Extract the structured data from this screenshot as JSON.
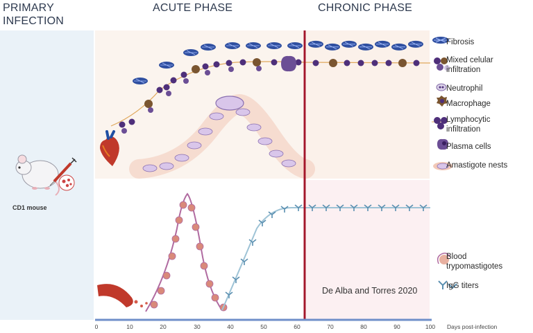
{
  "header": {
    "primary": "PRIMARY INFECTION",
    "acute": "ACUTE PHASE",
    "chronic": "CHRONIC PHASE"
  },
  "mouse_label": "CD1 mouse",
  "legend": [
    {
      "label": "Fibrosis",
      "icon": "fibrosis-icon"
    },
    {
      "label": "Mixed celular infiltration",
      "icon": "mixed-infiltration-icon"
    },
    {
      "label": "Neutrophil",
      "icon": "neutrophil-icon"
    },
    {
      "label": "Macrophage",
      "icon": "macrophage-icon"
    },
    {
      "label": "Lymphocytic infiltration",
      "icon": "lymphocyte-icon"
    },
    {
      "label": "Plasma cells",
      "icon": "plasma-cell-icon"
    },
    {
      "label": "Amastigote nests",
      "icon": "amastigote-nest-icon"
    },
    {
      "label": "Blood trypomastigotes",
      "icon": "trypomastigote-icon"
    },
    {
      "label": "IgG titers",
      "icon": "igg-icon"
    }
  ],
  "credit": "De Alba and Torres 2020",
  "axis": {
    "ticks": [
      "0",
      "10",
      "20",
      "30",
      "40",
      "50",
      "60",
      "70",
      "80",
      "90",
      "100"
    ],
    "title": "Days post-infection",
    "range": [
      0,
      100
    ],
    "phase_boundary_day": 62
  },
  "colors": {
    "phase_line": "#a3162a",
    "acute_bg": "#fbf4ee",
    "chronic_bg": "#fcf0f1",
    "axis": "#6f8fc9",
    "parasite_curve": "#b06aa0",
    "igg_curve": "#9ec3d6",
    "lymphocyte": "#4e2f7a",
    "fibrosis": "#2f4fa0",
    "macrophage": "#7a5530",
    "nest": "#e6a79b"
  }
}
